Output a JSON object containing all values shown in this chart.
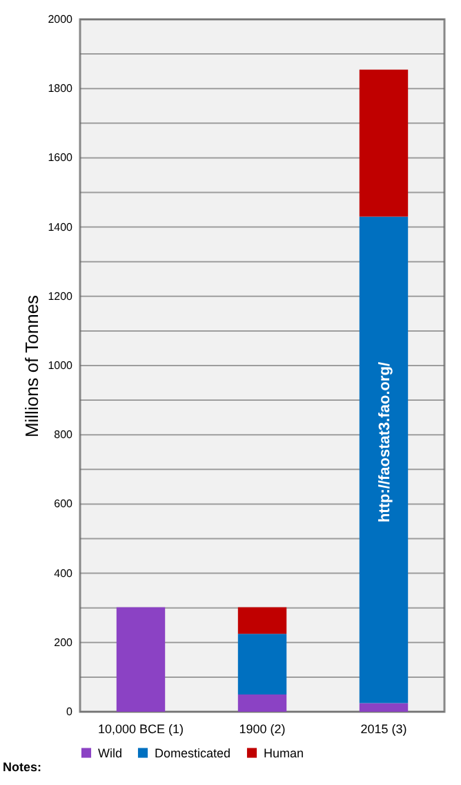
{
  "chart_data": {
    "type": "bar",
    "stacked": true,
    "ylabel": "Millions of Tonnes",
    "categories": [
      "10,000 BCE (1)",
      "1900 (2)",
      "2015 (3)"
    ],
    "series": [
      {
        "name": "Wild",
        "color": "#8b42c4",
        "values": [
          302,
          50,
          25
        ]
      },
      {
        "name": "Domesticated",
        "color": "#0070c0",
        "values": [
          0,
          175,
          1405
        ]
      },
      {
        "name": "Human",
        "color": "#c00000",
        "values": [
          0,
          77,
          425
        ]
      }
    ],
    "ylim": [
      0,
      2000
    ],
    "yticks": [
      0,
      {
        "value": 100,
        "label": null
      },
      200,
      {
        "value": 300,
        "label": null
      },
      400,
      {
        "value": 500,
        "label": null
      },
      600,
      {
        "value": 700,
        "label": null
      },
      800,
      {
        "value": 900,
        "label": null
      },
      1000,
      {
        "value": 1100,
        "label": null
      },
      1200,
      {
        "value": 1300,
        "label": null
      },
      1400,
      {
        "value": 1500,
        "label": null
      },
      1600,
      {
        "value": 1700,
        "label": null
      },
      1800,
      {
        "value": 1900,
        "label": null
      },
      2000
    ],
    "grid": "y",
    "legend": "bottom",
    "annotations": [
      "http://faostat3.fao.org/",
      "Notes:"
    ]
  }
}
